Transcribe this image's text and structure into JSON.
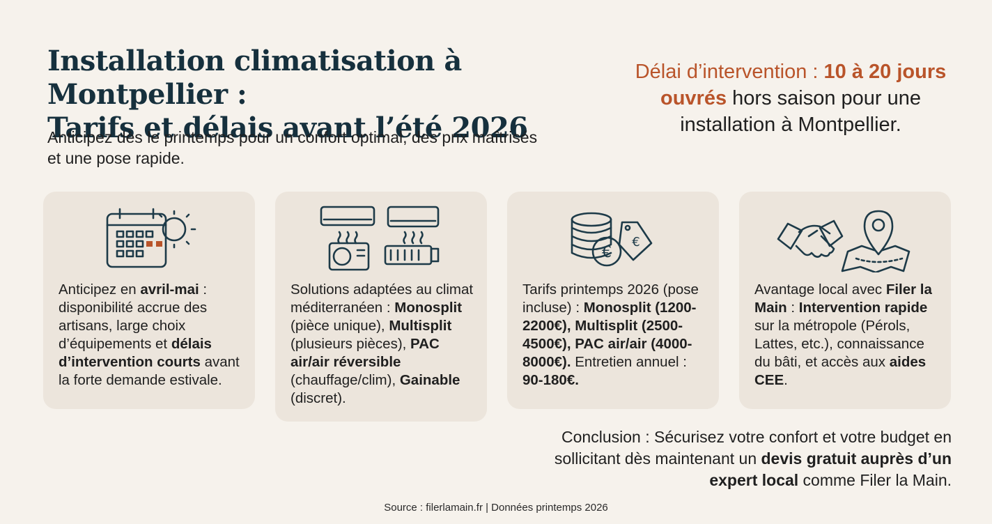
{
  "header": {
    "title_line1": "Installation climatisation à Montpellier :",
    "title_line2": "Tarifs et délais avant l’été 2026",
    "subtitle": "Anticipez dès le printemps pour un confort optimal, des prix maîtrisés et une pose rapide."
  },
  "delay": {
    "prefix": "Délai d’intervention : ",
    "highlight": "10 à 20 jours ouvrés",
    "suffix": " hors saison pour une installation à Montpellier."
  },
  "cards": [
    {
      "icon": "calendar-sun-icon",
      "t1": "Anticipez en ",
      "b1": "avril-mai",
      "t2": " : disponibilité accrue des artisans, large choix d’équipements et ",
      "b2": "délais d’intervention courts",
      "t3": " avant la forte demande estivale."
    },
    {
      "icon": "air-conditioner-units-icon",
      "t1": "Solutions adaptées au climat méditerranéen : ",
      "b1": "Monosplit",
      "t2": " (pièce unique), ",
      "b2": "Multisplit",
      "t3": " (plusieurs pièces), ",
      "b3": "PAC air/air réversible",
      "t4": " (chauffage/clim), ",
      "b4": "Gainable",
      "t5": " (discret)."
    },
    {
      "icon": "coins-price-tag-icon",
      "t1": "Tarifs printemps 2026 (pose incluse) : ",
      "b1": "Monosplit (1200-2200€), Multisplit (2500-4500€), PAC air/air (4000-8000€).",
      "t2": " Entretien annuel : ",
      "b2": "90-180€."
    },
    {
      "icon": "handshake-map-pin-icon",
      "t1": "Avantage local avec ",
      "b1": "Filer la Main",
      "t2": " : ",
      "b2": "Intervention rapide",
      "t3": " sur la métropole (Pérols, Lattes, etc.), connaissance du bâti, et accès aux ",
      "b3": "aides CEE",
      "t4": "."
    }
  ],
  "conclusion": {
    "t1": "Conclusion : Sécurisez votre confort et votre budget en sollicitant dès maintenant un ",
    "b1": "devis gratuit auprès d’un expert local",
    "t2": " comme Filer la Main."
  },
  "source": "Source : filerlamain.fr | Données printemps 2026",
  "colors": {
    "title": "#16303d",
    "accent": "#b9542a",
    "card_bg": "#ece5dc",
    "page_bg": "#f6f2ec",
    "icon_stroke": "#1d3a48"
  }
}
